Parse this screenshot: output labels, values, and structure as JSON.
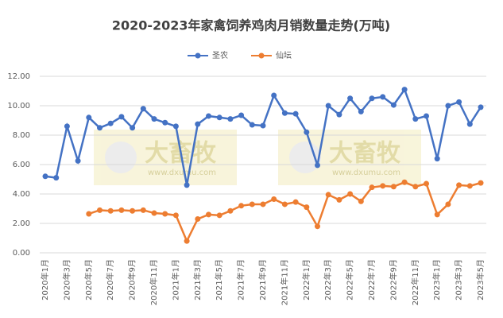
{
  "chart_data": {
    "type": "line",
    "title": "2020-2023年家禽饲养鸡肉月销数量走势(万吨)",
    "categories": [
      "2020年1月",
      null,
      "2020年3月",
      null,
      "2020年5月",
      null,
      "2020年7月",
      null,
      "2020年9月",
      null,
      "2020年11月",
      null,
      "2021年1月",
      null,
      "2021年3月",
      null,
      "2021年5月",
      null,
      "2021年7月",
      null,
      "2021年9月",
      null,
      "2021年11月",
      null,
      "2022年1月",
      null,
      "2022年3月",
      null,
      "2022年5月",
      null,
      "2022年7月",
      null,
      "2022年9月",
      null,
      "2022年11月",
      null,
      "2023年1月",
      null,
      "2023年3月",
      null,
      "2023年5月"
    ],
    "series": [
      {
        "name": "圣农",
        "color": "#4472c4",
        "values": [
          5.2,
          5.1,
          8.6,
          6.25,
          9.2,
          8.5,
          8.8,
          9.25,
          8.5,
          9.8,
          9.1,
          8.85,
          8.6,
          4.6,
          8.75,
          9.3,
          9.2,
          9.1,
          9.35,
          8.7,
          8.65,
          10.7,
          9.5,
          9.45,
          8.2,
          5.95,
          10.0,
          9.4,
          10.5,
          9.6,
          10.5,
          10.6,
          10.05,
          11.1,
          9.1,
          9.3,
          6.4,
          10.0,
          10.25,
          8.75,
          9.9
        ]
      },
      {
        "name": "仙坛",
        "color": "#ed7d31",
        "values": [
          null,
          null,
          null,
          null,
          2.65,
          2.9,
          2.85,
          2.9,
          2.85,
          2.9,
          2.7,
          2.65,
          2.55,
          0.8,
          2.3,
          2.6,
          2.55,
          2.85,
          3.2,
          3.3,
          3.3,
          3.65,
          3.3,
          3.45,
          3.1,
          1.8,
          3.95,
          3.6,
          4.0,
          3.5,
          4.45,
          4.55,
          4.5,
          4.8,
          4.5,
          4.7,
          2.6,
          3.3,
          4.6,
          4.55,
          4.75
        ]
      }
    ],
    "ylim": [
      0,
      12
    ],
    "yticks": [
      {
        "value": 0,
        "label": "0.00"
      },
      {
        "value": 2,
        "label": "2.00"
      },
      {
        "value": 4,
        "label": "4.00"
      },
      {
        "value": 6,
        "label": "6.00"
      },
      {
        "value": 8,
        "label": "8.00"
      },
      {
        "value": 10,
        "label": "10.00"
      },
      {
        "value": 12,
        "label": "12.00"
      }
    ],
    "grid": true,
    "legend": "top",
    "watermark": {
      "name": "大畜牧",
      "url": "www.dxumu.com"
    }
  }
}
